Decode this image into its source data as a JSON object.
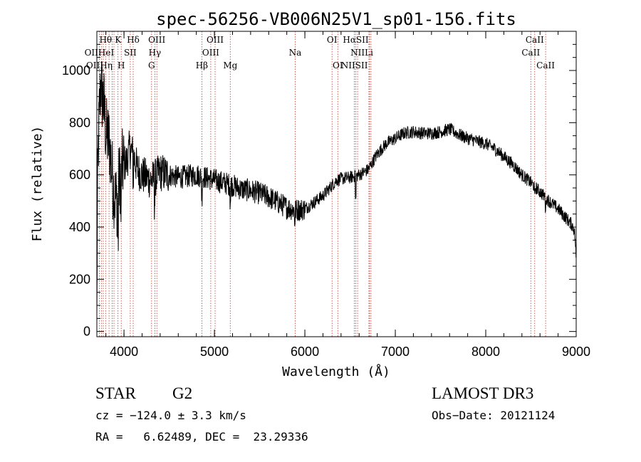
{
  "chart_data": {
    "type": "line",
    "title": "spec-56256-VB006N25V1_sp01-156.fits",
    "xlabel": "Wavelength (Å)",
    "ylabel": "Flux (relative)",
    "xlim": [
      3700,
      9000
    ],
    "ylim": [
      -20,
      1150
    ],
    "xticks": [
      "4000",
      "5000",
      "6000",
      "7000",
      "8000",
      "9000"
    ],
    "yticks": [
      "0",
      "200",
      "400",
      "600",
      "800",
      "1000"
    ],
    "xtick_values": [
      4000,
      5000,
      6000,
      7000,
      8000,
      9000
    ],
    "ytick_values": [
      0,
      200,
      400,
      600,
      800,
      1000
    ],
    "spectrum_anchors": [
      [
        3700,
        20
      ],
      [
        3705,
        450
      ],
      [
        3715,
        700
      ],
      [
        3730,
        860
      ],
      [
        3745,
        960
      ],
      [
        3760,
        900
      ],
      [
        3780,
        860
      ],
      [
        3800,
        760
      ],
      [
        3820,
        740
      ],
      [
        3840,
        720
      ],
      [
        3860,
        640
      ],
      [
        3880,
        560
      ],
      [
        3900,
        520
      ],
      [
        3920,
        500
      ],
      [
        3940,
        560
      ],
      [
        3960,
        600
      ],
      [
        3990,
        640
      ],
      [
        4030,
        650
      ],
      [
        4060,
        700
      ],
      [
        4100,
        680
      ],
      [
        4150,
        620
      ],
      [
        4200,
        600
      ],
      [
        4250,
        590
      ],
      [
        4300,
        580
      ],
      [
        4350,
        590
      ],
      [
        4400,
        610
      ],
      [
        4500,
        600
      ],
      [
        4600,
        590
      ],
      [
        4700,
        595
      ],
      [
        4800,
        600
      ],
      [
        4900,
        590
      ],
      [
        5000,
        580
      ],
      [
        5100,
        570
      ],
      [
        5200,
        560
      ],
      [
        5300,
        545
      ],
      [
        5400,
        540
      ],
      [
        5500,
        530
      ],
      [
        5600,
        515
      ],
      [
        5700,
        495
      ],
      [
        5800,
        475
      ],
      [
        5900,
        465
      ],
      [
        6000,
        470
      ],
      [
        6100,
        495
      ],
      [
        6200,
        520
      ],
      [
        6300,
        560
      ],
      [
        6350,
        580
      ],
      [
        6400,
        585
      ],
      [
        6500,
        590
      ],
      [
        6600,
        600
      ],
      [
        6700,
        620
      ],
      [
        6800,
        680
      ],
      [
        6900,
        720
      ],
      [
        7000,
        740
      ],
      [
        7100,
        760
      ],
      [
        7200,
        765
      ],
      [
        7300,
        760
      ],
      [
        7400,
        760
      ],
      [
        7500,
        765
      ],
      [
        7600,
        775
      ],
      [
        7700,
        755
      ],
      [
        7800,
        740
      ],
      [
        7900,
        730
      ],
      [
        8000,
        720
      ],
      [
        8100,
        700
      ],
      [
        8200,
        670
      ],
      [
        8300,
        640
      ],
      [
        8400,
        600
      ],
      [
        8500,
        570
      ],
      [
        8600,
        535
      ],
      [
        8700,
        500
      ],
      [
        8800,
        470
      ],
      [
        8900,
        430
      ],
      [
        8950,
        410
      ],
      [
        8980,
        390
      ],
      [
        8995,
        320
      ],
      [
        9000,
        230
      ]
    ],
    "dips": [
      [
        3933,
        180
      ],
      [
        3968,
        160
      ],
      [
        4101,
        80
      ],
      [
        4340,
        90
      ],
      [
        4861,
        70
      ],
      [
        5175,
        60
      ],
      [
        5890,
        40
      ],
      [
        6563,
        90
      ],
      [
        8542,
        40
      ],
      [
        8662,
        40
      ]
    ],
    "lines": [
      {
        "label": "Hθ",
        "x": 3797,
        "row": 0
      },
      {
        "label": "K",
        "x": 3934,
        "row": 0
      },
      {
        "label": "Hδ",
        "x": 4102,
        "row": 0
      },
      {
        "label": "OIII",
        "x": 4363,
        "row": 0
      },
      {
        "label": "OIII",
        "x": 5007,
        "row": 0
      },
      {
        "label": "OI",
        "x": 6300,
        "row": 0
      },
      {
        "label": "HαSII",
        "x": 6563,
        "row": 0
      },
      {
        "label": "CaII",
        "x": 8542,
        "row": 0
      },
      {
        "label": "OIIHeI",
        "x": 3727,
        "row": 1
      },
      {
        "label": "SII",
        "x": 4069,
        "row": 1
      },
      {
        "label": "Hγ",
        "x": 4341,
        "row": 1
      },
      {
        "label": "OIII",
        "x": 4959,
        "row": 1
      },
      {
        "label": "Na",
        "x": 5893,
        "row": 1
      },
      {
        "label": "NII",
        "x": 6583,
        "row": 1
      },
      {
        "label": "Li",
        "x": 6708,
        "row": 1
      },
      {
        "label": "CaII",
        "x": 8498,
        "row": 1
      },
      {
        "label": "OIIHη",
        "x": 3727,
        "row": 2
      },
      {
        "label": "H",
        "x": 3969,
        "row": 2
      },
      {
        "label": "G",
        "x": 4305,
        "row": 2
      },
      {
        "label": "Hβ",
        "x": 4861,
        "row": 2
      },
      {
        "label": "Mg",
        "x": 5175,
        "row": 2
      },
      {
        "label": "OI",
        "x": 6364,
        "row": 2
      },
      {
        "label": "NIISII",
        "x": 6548,
        "row": 2
      },
      {
        "label": "CaII",
        "x": 8662,
        "row": 2
      }
    ],
    "marker_lines_x": [
      3727,
      3750,
      3771,
      3797,
      3835,
      3869,
      3889,
      3934,
      3969,
      4069,
      4102,
      4305,
      4341,
      4363,
      4861,
      4959,
      5007,
      5175,
      5893,
      6300,
      6364,
      6548,
      6563,
      6583,
      6708,
      6716,
      6731,
      8498,
      8542,
      8662
    ]
  },
  "info": {
    "class_label": "STAR",
    "subclass": "G2",
    "survey": "LAMOST DR3",
    "cz": "cz = −124.0 ± 3.3 km/s",
    "obs_date": "Obs−Date: 20121124",
    "coords": "RA =   6.62489, DEC =  23.29336"
  },
  "colors": {
    "line_marker": "#c0392b",
    "spectrum": "#000000"
  }
}
